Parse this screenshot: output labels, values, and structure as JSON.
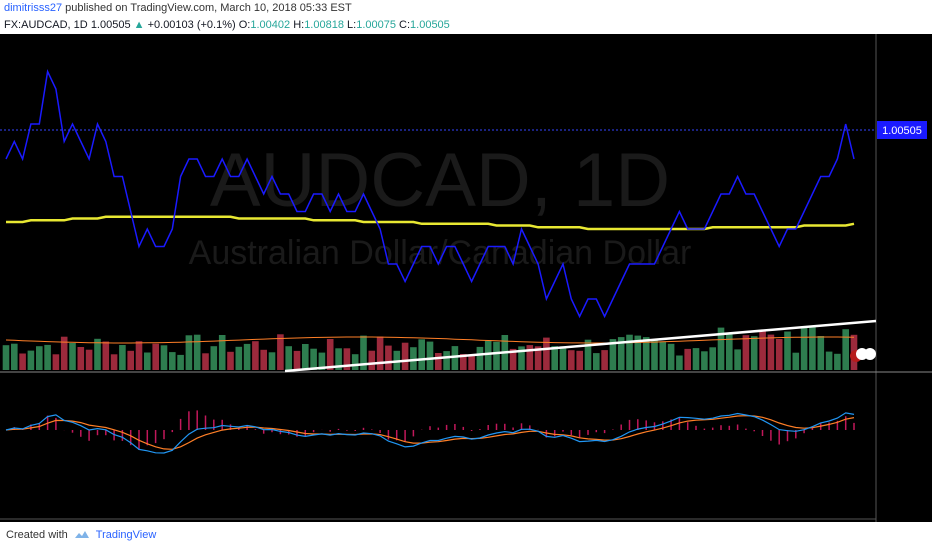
{
  "header": {
    "user": "dimitrisss27",
    "published": "published on TradingView.com, March 10, 2018 05:33 EST",
    "symbol": "FX:AUDCAD, 1D",
    "last": "1.00505",
    "arrow": "▲",
    "change": "+0.00103 (+0.1%)",
    "o_label": "O:",
    "o_val": "1.00402",
    "h_label": "H:",
    "h_val": "1.00818",
    "l_label": "L:",
    "l_val": "1.00075",
    "c_label": "C:",
    "c_val": "1.00505"
  },
  "watermark": {
    "symbol": "AUDCAD, 1D",
    "name": "Australian Dollar/Canadian Dollar"
  },
  "price_label": "1.00505",
  "footer": {
    "created_with": "Created with",
    "brand": "TradingView"
  },
  "colors": {
    "background": "#000000",
    "price_line": "#1a1aff",
    "ma_line": "#e8e832",
    "trend_line": "#ffffff",
    "vol_up": "#2e7d4f",
    "vol_down": "#9c2a3c",
    "macd_line": "#2196f3",
    "signal_line": "#ff7f27",
    "histogram": "#c2185b"
  },
  "chart_data": {
    "type": "line",
    "series": [
      {
        "values": [
          1.0,
          1.01,
          1.0,
          1.02,
          1.02,
          1.05,
          1.04,
          1.01,
          1.02,
          1.01,
          1.0,
          1.02,
          1.01,
          0.99,
          0.99,
          0.97,
          0.95,
          0.96,
          0.95,
          0.95,
          0.96,
          0.99,
          1.0,
          1.0,
          0.99,
          0.99,
          1.0,
          0.99,
          0.99,
          1.0,
          0.99,
          0.98,
          0.99,
          0.98,
          0.98,
          0.97,
          0.97,
          0.98,
          0.98,
          0.97,
          0.98,
          0.97,
          0.97,
          0.98,
          0.97,
          0.96,
          0.94,
          0.94,
          0.93,
          0.94,
          0.95,
          0.95,
          0.94,
          0.95,
          0.95,
          0.94,
          0.93,
          0.94,
          0.95,
          0.95,
          0.95,
          0.94,
          0.96,
          0.95,
          0.94,
          0.92,
          0.93,
          0.94,
          0.92,
          0.91,
          0.92,
          0.92,
          0.91,
          0.92,
          0.93,
          0.94,
          0.94,
          0.94,
          0.94,
          0.95,
          0.96,
          0.97,
          0.96,
          0.96,
          0.96,
          0.97,
          0.98,
          0.98,
          0.99,
          0.98,
          0.98,
          0.97,
          0.96,
          0.95,
          0.96,
          0.96,
          0.97,
          0.98,
          0.99,
          0.99,
          1.0,
          1.02,
          1.0
        ]
      },
      {
        "values": [
          0.964,
          0.964,
          0.964,
          0.965,
          0.965,
          0.965,
          0.965,
          0.965,
          0.966,
          0.966,
          0.966,
          0.966,
          0.967,
          0.967,
          0.967,
          0.967,
          0.967,
          0.967,
          0.967,
          0.967,
          0.967,
          0.967,
          0.967,
          0.967,
          0.967,
          0.967,
          0.967,
          0.967,
          0.966,
          0.966,
          0.966,
          0.966,
          0.966,
          0.966,
          0.966,
          0.966,
          0.966,
          0.965,
          0.965,
          0.965,
          0.965,
          0.965,
          0.965,
          0.964,
          0.964,
          0.964,
          0.964,
          0.964,
          0.964,
          0.964,
          0.963,
          0.963,
          0.963,
          0.963,
          0.963,
          0.963,
          0.963,
          0.963,
          0.963,
          0.962,
          0.962,
          0.962,
          0.962,
          0.962,
          0.961,
          0.961,
          0.961,
          0.961,
          0.961,
          0.961,
          0.96,
          0.96,
          0.96,
          0.96,
          0.96,
          0.96,
          0.96,
          0.96,
          0.96,
          0.96,
          0.96,
          0.96,
          0.96,
          0.96,
          0.96,
          0.961,
          0.961,
          0.961,
          0.961,
          0.961,
          0.961,
          0.961,
          0.961,
          0.961,
          0.961,
          0.961,
          0.962,
          0.962,
          0.962,
          0.962,
          0.962,
          0.962,
          0.963
        ]
      }
    ]
  }
}
